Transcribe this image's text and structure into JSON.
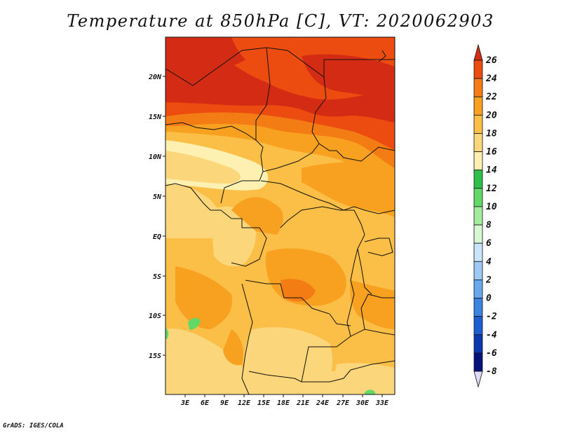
{
  "title": "Temperature at 850hPa [C], VT: 2020062903",
  "credit": "GrADS: IGES/COLA",
  "lat_labels": [
    "20N",
    "15N",
    "10N",
    "5N",
    "EQ",
    "5S",
    "10S",
    "15S"
  ],
  "lon_labels": [
    "3E",
    "6E",
    "9E",
    "12E",
    "15E",
    "18E",
    "21E",
    "24E",
    "27E",
    "30E",
    "33E"
  ],
  "colorbar": {
    "labels": [
      "26",
      "24",
      "22",
      "20",
      "18",
      "16",
      "14",
      "12",
      "10",
      "8",
      "6",
      "4",
      "2",
      "0",
      "-2",
      "-4",
      "-6",
      "-8"
    ],
    "colors": [
      "#d42c14",
      "#ec4c10",
      "#f47c14",
      "#f8a020",
      "#fbbe46",
      "#fcd67a",
      "#fdf0b0",
      "#2ec04a",
      "#64d866",
      "#a4ec9c",
      "#d8f6d4",
      "#c8e4f8",
      "#9ccaf4",
      "#6aa8ee",
      "#3c82e0",
      "#1e5cd2",
      "#0c38b0",
      "#08127a",
      "#dcdcfa"
    ]
  }
}
